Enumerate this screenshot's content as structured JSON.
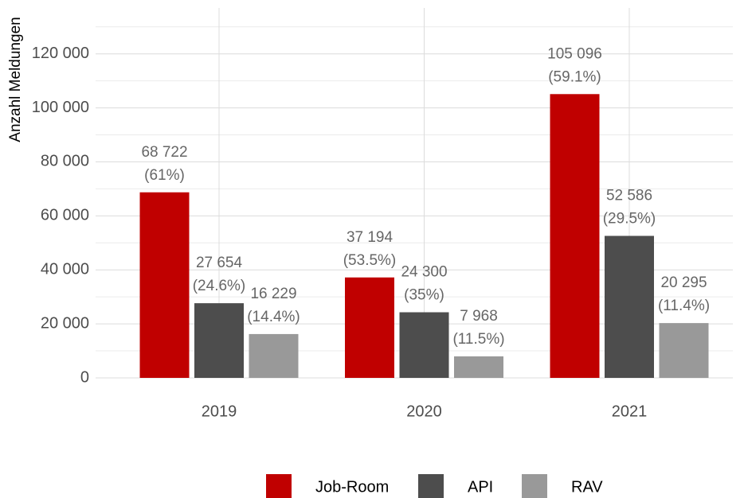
{
  "chart_data": {
    "type": "bar",
    "y_label": "Anzahl Meldungen",
    "categories": [
      "2019",
      "2020",
      "2021"
    ],
    "series": [
      {
        "name": "Job-Room",
        "color": "#c00000",
        "values": [
          68722,
          37194,
          105096
        ],
        "value_labels": [
          "68 722",
          "37 194",
          "105 096"
        ],
        "shares": [
          61,
          53.5,
          59.1
        ],
        "share_labels": [
          "(61%)",
          "(53.5%)",
          "(59.1%)"
        ]
      },
      {
        "name": "API",
        "color": "#4d4d4d",
        "values": [
          27654,
          24300,
          52586
        ],
        "value_labels": [
          "27 654",
          "24 300",
          "52 586"
        ],
        "shares": [
          24.6,
          35,
          29.5
        ],
        "share_labels": [
          "(24.6%)",
          "(35%)",
          "(29.5%)"
        ]
      },
      {
        "name": "RAV",
        "color": "#999999",
        "values": [
          16229,
          7968,
          20295
        ],
        "value_labels": [
          "16 229",
          "7 968",
          "20 295"
        ],
        "shares": [
          14.4,
          11.5,
          11.4
        ],
        "share_labels": [
          "(14.4%)",
          "(11.5%)",
          "(11.4%)"
        ]
      }
    ],
    "ylim": [
      0,
      137000
    ],
    "yticks": [
      0,
      {
        "value": 20000,
        "label": "20 000"
      },
      {
        "value": 40000,
        "label": "40 000"
      },
      {
        "value": 60000,
        "label": "60 000"
      },
      {
        "value": 80000,
        "label": "80 000"
      },
      {
        "value": 100000,
        "label": "100 000"
      },
      {
        "value": 120000,
        "label": "120 000"
      }
    ],
    "grid": true,
    "legend": "bottom"
  }
}
